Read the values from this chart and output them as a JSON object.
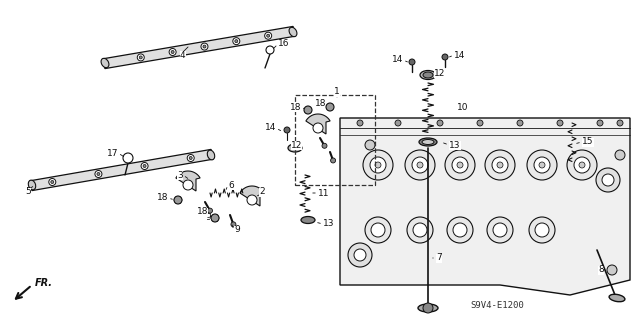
{
  "bg_color": "#ffffff",
  "diagram_code": "S9V4-E1200",
  "fr_label": "FR.",
  "line_color": "#111111",
  "gray_fill": "#aaaaaa",
  "light_gray": "#cccccc",
  "white": "#ffffff"
}
